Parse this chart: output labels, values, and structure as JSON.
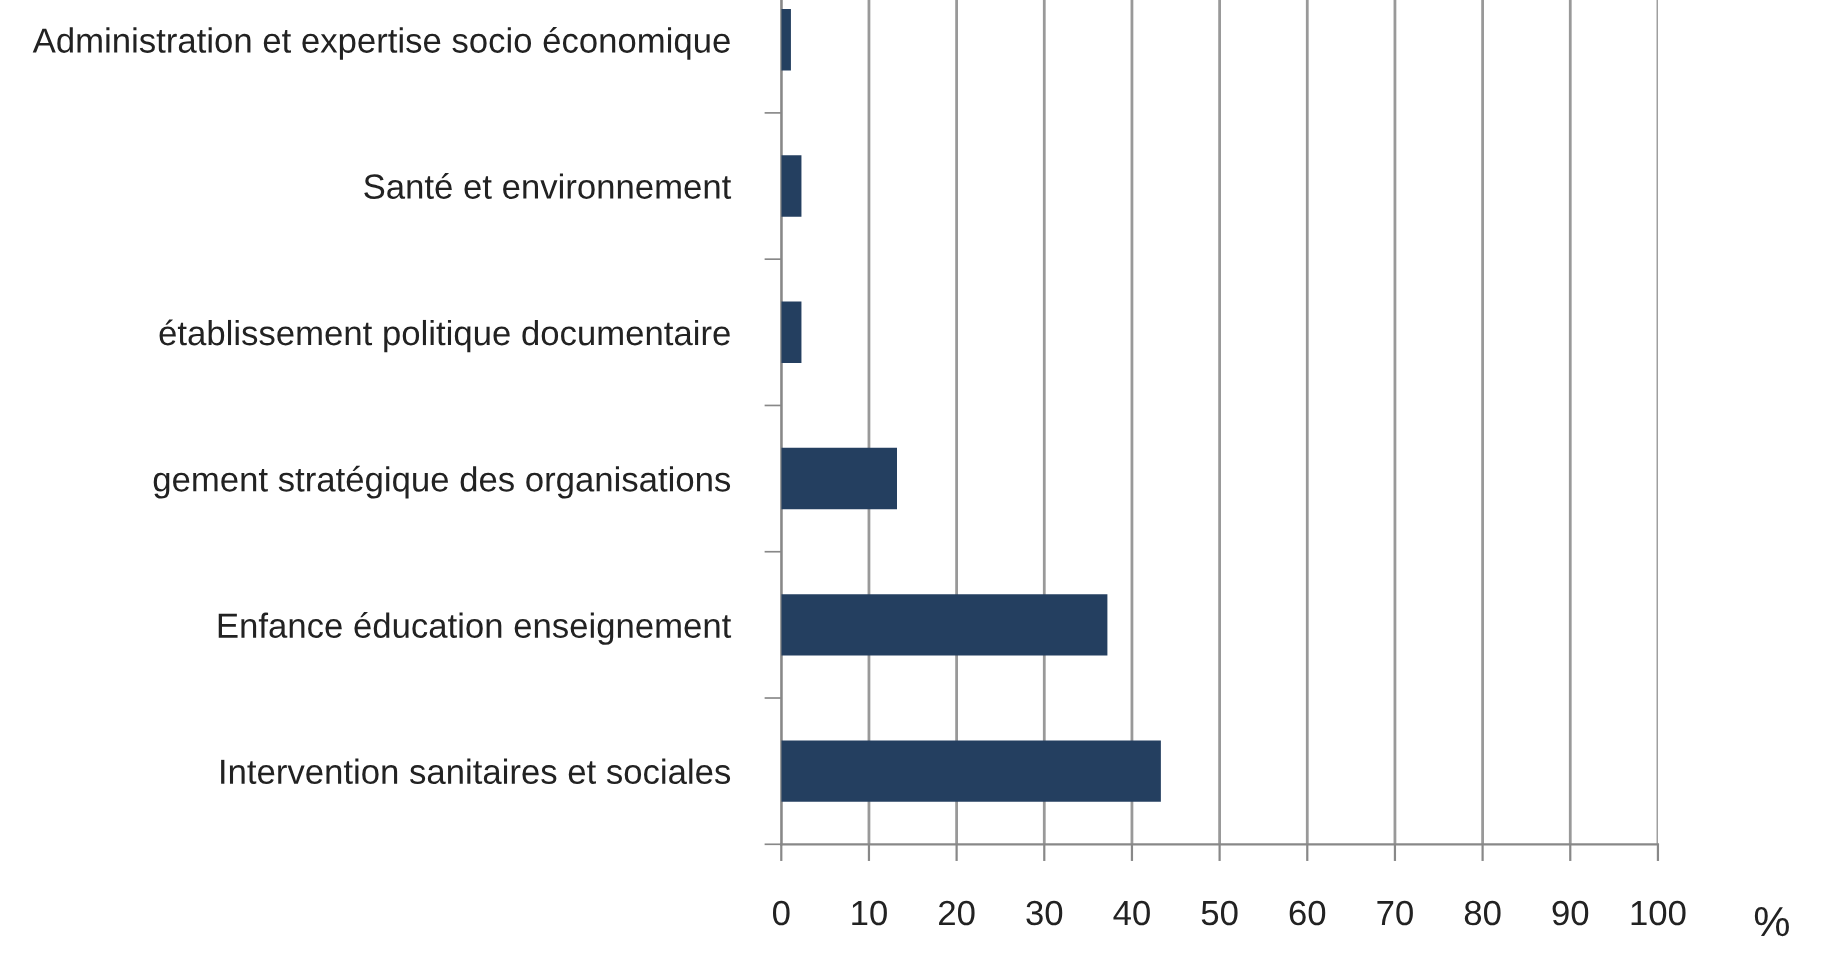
{
  "chart_data": {
    "type": "bar",
    "orientation": "horizontal",
    "categories": [
      "Administration et expertise socio économique",
      "Santé et environnement",
      "établissement politique documentaire",
      "gement stratégique des organisations",
      "Enfance éducation enseignement",
      "Intervention sanitaires et sociales"
    ],
    "values": [
      1.1,
      2.3,
      2.3,
      13.2,
      37.2,
      43.3
    ],
    "color": "#243f60",
    "xlim": [
      0,
      100
    ],
    "xticks": [
      0,
      10,
      20,
      30,
      40,
      50,
      60,
      70,
      80,
      90,
      100
    ],
    "xlabel": "%",
    "grid": "x",
    "legend": false
  }
}
